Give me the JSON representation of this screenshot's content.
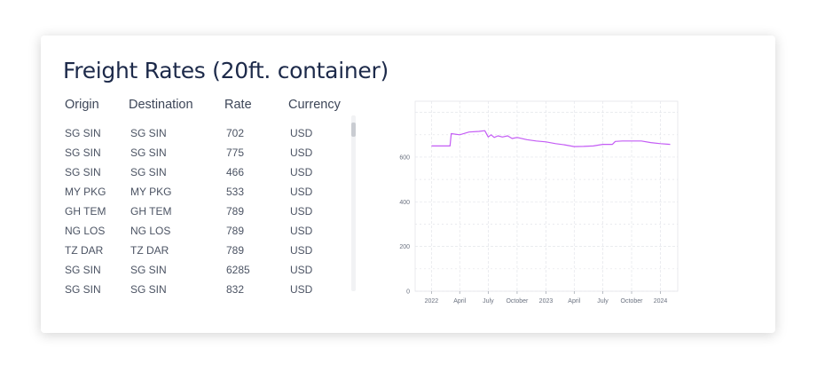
{
  "title": "Freight Rates (20ft. container)",
  "table": {
    "headers": [
      "Origin",
      "Destination",
      "Rate",
      "Currency"
    ],
    "rows": [
      [
        "SG SIN",
        "SG SIN",
        "702",
        "USD"
      ],
      [
        "SG SIN",
        "SG SIN",
        "775",
        "USD"
      ],
      [
        "SG SIN",
        "SG SIN",
        "466",
        "USD"
      ],
      [
        "MY PKG",
        "MY PKG",
        "533",
        "USD"
      ],
      [
        "GH TEM",
        "GH TEM",
        "789",
        "USD"
      ],
      [
        "NG LOS",
        "NG LOS",
        "789",
        "USD"
      ],
      [
        "TZ DAR",
        "TZ DAR",
        "789",
        "USD"
      ],
      [
        "SG SIN",
        "SG SIN",
        "6285",
        "USD"
      ],
      [
        "SG SIN",
        "SG SIN",
        "832",
        "USD"
      ]
    ]
  },
  "chart_data": {
    "type": "line",
    "title": "",
    "xlabel": "",
    "ylabel": "",
    "ylim": [
      0,
      850
    ],
    "y_ticks": [
      0,
      200,
      400,
      600
    ],
    "x_ticks": [
      "2022",
      "April",
      "July",
      "October",
      "2023",
      "April",
      "July",
      "October",
      "2024"
    ],
    "x_tick_dates": [
      "2022-01-01",
      "2022-04-01",
      "2022-07-01",
      "2022-10-01",
      "2023-01-01",
      "2023-04-01",
      "2023-07-01",
      "2023-10-01",
      "2024-01-01"
    ],
    "x_range": [
      "2021-11-10",
      "2024-02-25"
    ],
    "grid": true,
    "line_color": "#c45cf5",
    "series": [
      {
        "x": [
          "2022-01-01",
          "2022-03-01",
          "2022-03-05",
          "2022-04-01",
          "2022-05-01",
          "2022-06-01",
          "2022-06-20",
          "2022-07-01",
          "2022-07-10",
          "2022-07-20",
          "2022-08-01",
          "2022-08-15",
          "2022-09-01",
          "2022-09-15",
          "2022-10-01",
          "2022-11-01",
          "2022-12-01",
          "2023-01-01",
          "2023-02-01",
          "2023-03-01",
          "2023-04-01",
          "2023-05-01",
          "2023-06-01",
          "2023-07-01",
          "2023-08-01",
          "2023-08-10",
          "2023-09-01",
          "2023-10-01",
          "2023-11-01",
          "2023-12-01",
          "2024-01-01",
          "2024-02-01"
        ],
        "y": [
          650,
          650,
          705,
          700,
          712,
          715,
          718,
          690,
          700,
          688,
          695,
          690,
          695,
          683,
          688,
          678,
          672,
          668,
          660,
          655,
          647,
          648,
          650,
          657,
          657,
          670,
          672,
          672,
          672,
          665,
          660,
          657
        ]
      }
    ]
  }
}
